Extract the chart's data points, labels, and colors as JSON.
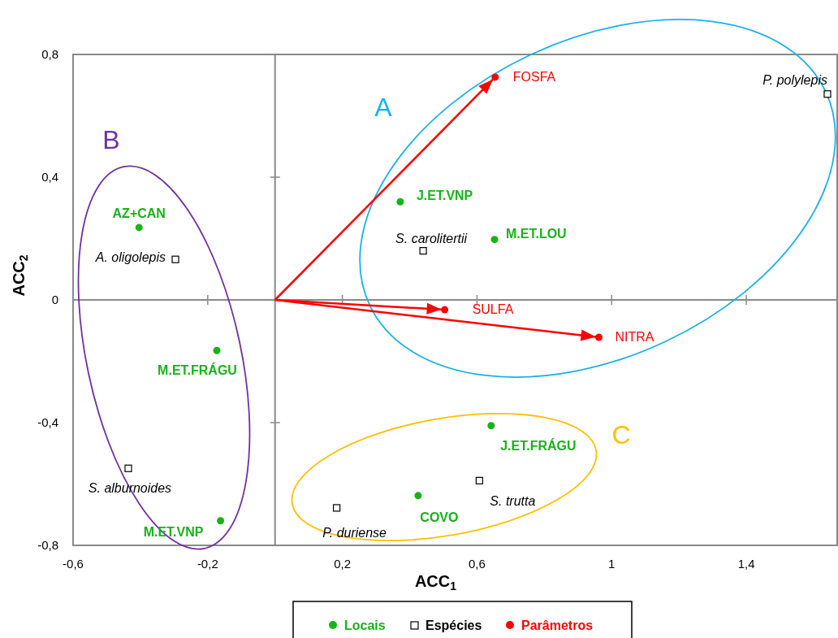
{
  "chart_data": {
    "type": "scatter",
    "xlabel": "ACC$_{1}$",
    "ylabel": "ACC$_{2}$",
    "xlim": [
      -0.6,
      1.67
    ],
    "ylim": [
      -0.8,
      0.8
    ],
    "xticks": [
      {
        "value": -0.6,
        "label": "-0,6"
      },
      {
        "value": -0.2,
        "label": "-0,2"
      },
      {
        "value": 0.2,
        "label": "0,2"
      },
      {
        "value": 0.6,
        "label": "0,6"
      },
      1,
      {
        "value": 1.4,
        "label": "1,4"
      }
    ],
    "yticks": [
      {
        "value": -0.8,
        "label": "-0,8"
      },
      {
        "value": -0.4,
        "label": "-0,4"
      },
      0,
      {
        "value": 0.4,
        "label": "0,4"
      },
      {
        "value": 0.8,
        "label": "0,8"
      }
    ],
    "grid": false,
    "legend": "bottom",
    "series": [
      {
        "name": "Locais",
        "marker": "circle",
        "color": "#19b219",
        "x": [
          -0.404,
          -0.173,
          -0.162,
          0.372,
          0.652,
          0.642,
          0.425
        ],
        "values": [
          0.236,
          -0.165,
          -0.72,
          0.32,
          0.197,
          -0.41,
          -0.638
        ],
        "value_labels": [
          "AZ+CAN",
          "M.ET.FRÁGU",
          "M.ET.VNP",
          "J.ET.VNP",
          "M.ET.LOU",
          "J.ET.FRÁGU",
          "COVO"
        ]
      },
      {
        "name": "Espécies",
        "marker": "square",
        "color": "#000000",
        "x": [
          -0.296,
          -0.436,
          1.641,
          0.44,
          0.607,
          0.183
        ],
        "values": [
          0.132,
          -0.549,
          0.671,
          0.16,
          -0.589,
          -0.678
        ],
        "value_labels": [
          "A. oligolepis",
          "S. alburnoides",
          "P. polylepis",
          "S. carolitertii",
          "S. trutta",
          "P. duriense"
        ]
      },
      {
        "name": "Parâmetros",
        "marker": "circle",
        "color": "#ff0000",
        "x": [
          0.654,
          0.504,
          0.962
        ],
        "values": [
          0.726,
          -0.032,
          -0.122
        ],
        "value_labels": [
          "FOSFA",
          "SULFA",
          "NITRA"
        ]
      },
      {
        "type": "line",
        "color": "#ff0000",
        "x": [
          0,
          0.654
        ],
        "values": [
          0,
          0.726
        ]
      },
      {
        "type": "line",
        "color": "#ff0000",
        "x": [
          0,
          0.504
        ],
        "values": [
          0,
          -0.032
        ]
      },
      {
        "type": "line",
        "color": "#ff0000",
        "x": [
          0,
          0.962
        ],
        "values": [
          0,
          -0.122
        ]
      }
    ],
    "ref_lines": [
      {
        "axis": "y",
        "value": 0,
        "color": "#898989"
      }
    ],
    "annotations": [
      "A",
      "B",
      "C"
    ]
  }
}
